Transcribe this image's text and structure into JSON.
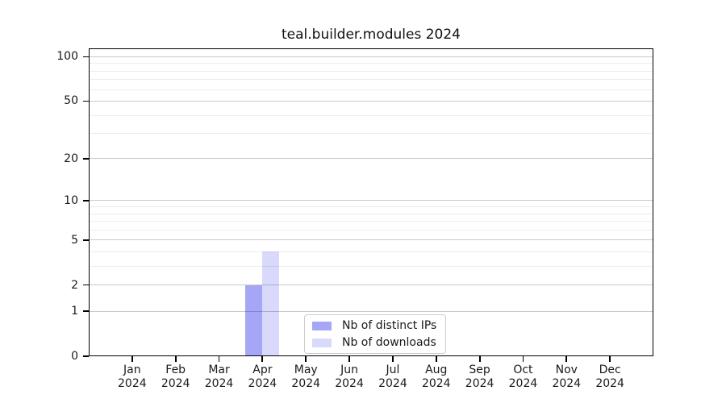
{
  "figure": {
    "background": "#ffffff"
  },
  "chart_data": {
    "type": "bar",
    "title": "teal.builder.modules 2024",
    "categories": [
      "Jan",
      "Feb",
      "Mar",
      "Apr",
      "May",
      "Jun",
      "Jul",
      "Aug",
      "Sep",
      "Oct",
      "Nov",
      "Dec"
    ],
    "category_year": "2024",
    "series": [
      {
        "name": "Nb of distinct IPs",
        "color": "rgba(0,0,230,0.35)",
        "color_hex_on_white": "#a6a6f7",
        "values": [
          0,
          0,
          0,
          2,
          0,
          0,
          0,
          0,
          0,
          0,
          0,
          0
        ]
      },
      {
        "name": "Nb of downloads",
        "color": "rgba(0,0,230,0.15)",
        "color_hex_on_white": "#d9d9fb",
        "values": [
          0,
          0,
          0,
          4,
          0,
          0,
          0,
          0,
          0,
          0,
          0,
          0
        ]
      }
    ],
    "xlabel": "",
    "ylabel": "",
    "y_scale": "log10(1+x)",
    "y_major_ticks": [
      0,
      1,
      2,
      5,
      10,
      20,
      50,
      100
    ],
    "y_minor_gridlines": [
      3,
      4,
      6,
      7,
      8,
      9,
      30,
      40,
      60,
      70,
      80,
      90
    ],
    "ylim": [
      0,
      114
    ],
    "grid": "horizontal",
    "legend_position": "inside-bottom-center"
  },
  "colors": {
    "grid_major": "#c9c9c9",
    "grid_minor": "#ededed",
    "spine": "#000000",
    "text": "#1a1a1a",
    "legend_border": "#cccccc"
  }
}
